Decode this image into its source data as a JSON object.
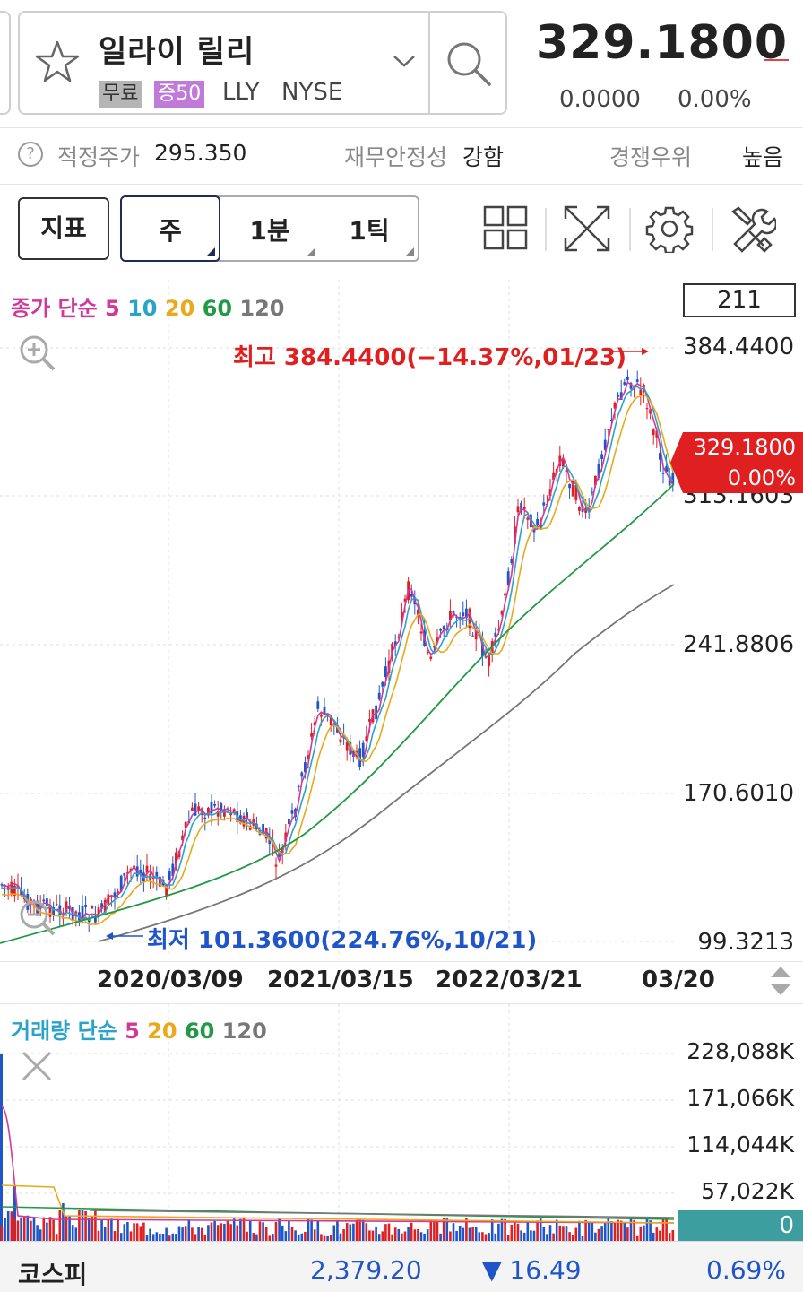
{
  "header": {
    "stock_name": "일라이 릴리",
    "badge_free": "무료",
    "badge_margin": "증50",
    "ticker": "LLY",
    "exchange": "NYSE",
    "price": "329.1800",
    "change": "0.0000",
    "change_pct": "0.00%"
  },
  "info": {
    "help_glyph": "?",
    "fair_price_label": "적정주가",
    "fair_price_value": "295.350",
    "stability_label": "재무안정성",
    "stability_value": "강함",
    "competitive_label": "경쟁우위",
    "competitive_value": "높음"
  },
  "toolbar": {
    "indicator_label": "지표",
    "period_week": "주",
    "period_1min": "1분",
    "period_1tick": "1틱"
  },
  "chart": {
    "legend_prefix": "종가 단순",
    "ma_labels": [
      "5",
      "10",
      "20",
      "60",
      "120"
    ],
    "ma_colors": [
      "#d4379a",
      "#2aa3c9",
      "#e8a91a",
      "#229944",
      "#777777"
    ],
    "count": "211",
    "high_label": "최고 384.4400(−14.37%,01/23)",
    "low_label": "최저 101.3600(224.76%,10/21)",
    "y_labels": [
      "384.4400",
      "313.1603",
      "241.8806",
      "170.6010",
      "99.3213"
    ],
    "price_tag_value": "329.1800",
    "price_tag_pct": "0.00%",
    "x_labels": [
      "2020/03/09",
      "2021/03/15",
      "2022/03/21",
      "03/20"
    ],
    "up_color": "#e02020",
    "down_color": "#1f55c8"
  },
  "volume": {
    "legend_prefix": "거래량 단순",
    "ma_labels": [
      "5",
      "20",
      "60",
      "120"
    ],
    "ma_colors": [
      "#d4379a",
      "#e8a91a",
      "#229944",
      "#777777"
    ],
    "y_labels": [
      "228,088K",
      "171,066K",
      "114,044K",
      "57,022K"
    ],
    "current": "0"
  },
  "bottom": {
    "index_name": "코스피",
    "index_value": "2,379.20",
    "index_change": "▼ 16.49",
    "index_pct": "0.69%"
  }
}
